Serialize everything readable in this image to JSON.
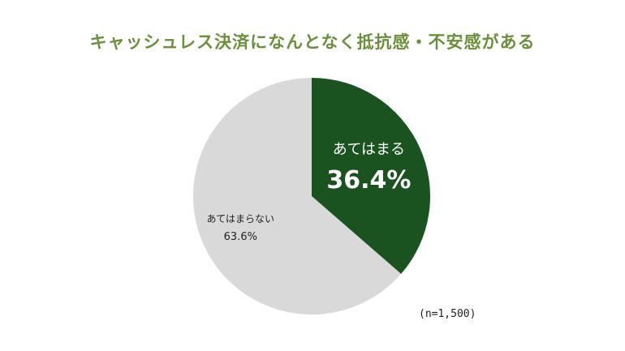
{
  "colors": {
    "title": "#6b8f3a",
    "slice_primary": "#1b5320",
    "slice_secondary": "#d9d9d9",
    "label_on_dark": "#ffffff",
    "label_on_light": "#222222"
  },
  "chart_data": {
    "type": "pie",
    "title": "キャッシュレス決済になんとなく抵抗感・不安感がある",
    "slices": [
      {
        "label": "あてはまる",
        "value": 36.4,
        "display": "36.4%",
        "color": "#1b5320"
      },
      {
        "label": "あてはまらない",
        "value": 63.6,
        "display": "63.6%",
        "color": "#d9d9d9"
      }
    ],
    "start": "12 o'clock",
    "direction": "clockwise"
  },
  "note": "(n=1,500)"
}
